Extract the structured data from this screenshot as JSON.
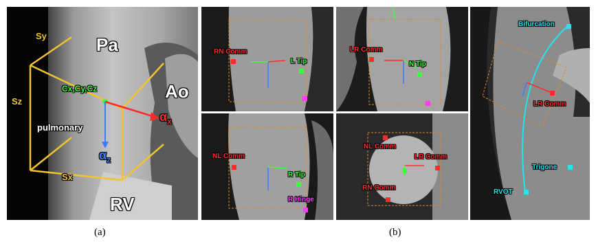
{
  "panel_a": {
    "region_labels": {
      "pa": "Pa",
      "ao": "Ao",
      "rv": "RV",
      "pulmonary": "pulmonary"
    },
    "box_axes": {
      "sy": "Sy",
      "sz": "Sz",
      "sx": "Sx"
    },
    "center_label": "Cx,Cy,Cz",
    "alpha_x": {
      "symbol": "α",
      "sub": "x"
    },
    "alpha_z": {
      "symbol": "α",
      "sub": "z"
    },
    "caption": "(a)"
  },
  "panel_b": {
    "caption": "(b)",
    "view1": {
      "rn_comm": "RN Comm",
      "l_tip": "L Tip"
    },
    "view2": {
      "lr_comm": "LR Comm",
      "n_tip": "N Tip"
    },
    "view3": {
      "nl_comm": "NL Comm",
      "r_tip": "R Tip",
      "r_hinge": "R Hinge"
    },
    "view4": {
      "nl_comm": "NL Comm",
      "lr_comm": "LR Comm",
      "rn_comm": "RN Comm"
    },
    "view5": {
      "bifurcation": "Bifurcation",
      "lr_comm": "LR Comm",
      "trigone": "Trigone",
      "rvot": "RVOT"
    }
  },
  "colors": {
    "box": "#f4c430",
    "green": "#3cff3c",
    "red": "#ff2a2a",
    "magenta": "#ff3cff",
    "cyan": "#22e6ee",
    "blue": "#3a7bff",
    "orange_dash": "#e08a2a"
  }
}
